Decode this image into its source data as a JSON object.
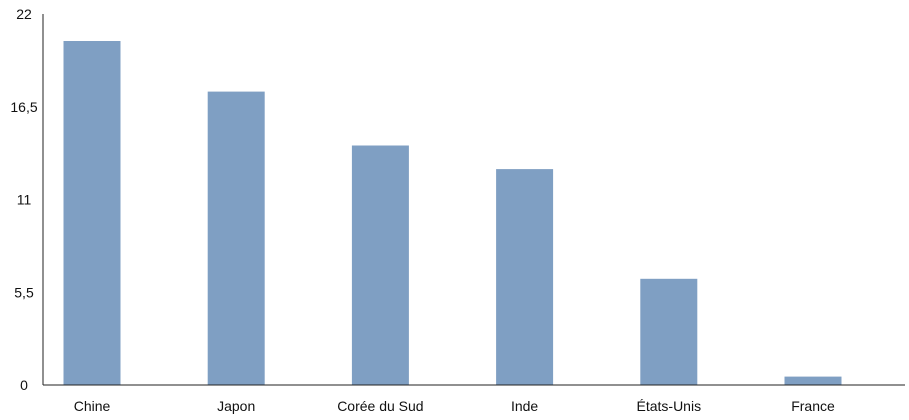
{
  "chart_data": {
    "type": "bar",
    "title": "",
    "xlabel": "",
    "ylabel": "",
    "categories": [
      "Chine",
      "Japon",
      "Corée du Sud",
      "Inde",
      "États-Unis",
      "France"
    ],
    "values": [
      20.4,
      17.4,
      14.2,
      12.8,
      6.3,
      0.5
    ],
    "ylim": [
      0,
      22
    ],
    "yticks": [
      "0",
      "5,5",
      "11",
      "16,5",
      "22"
    ],
    "ytick_values": [
      0,
      5.5,
      11,
      16.5,
      22
    ],
    "grid": false,
    "legend": "none",
    "colors": {
      "bar": "#7f9fc3",
      "axis": "#222222",
      "text": "#111111"
    }
  }
}
